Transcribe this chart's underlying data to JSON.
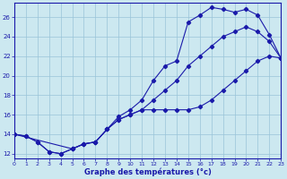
{
  "background_color": "#cce8f0",
  "grid_color": "#99c4d8",
  "line_color": "#1a1aaa",
  "xlabel": "Graphe des températures (°c)",
  "xlim": [
    0,
    23
  ],
  "ylim": [
    11.5,
    27.5
  ],
  "xticks": [
    0,
    1,
    2,
    3,
    4,
    5,
    6,
    7,
    8,
    9,
    10,
    11,
    12,
    13,
    14,
    15,
    16,
    17,
    18,
    19,
    20,
    21,
    22,
    23
  ],
  "yticks": [
    12,
    14,
    16,
    18,
    20,
    22,
    24,
    26
  ],
  "series": [
    {
      "x": [
        0,
        1,
        2,
        3,
        4,
        5,
        6,
        7,
        8,
        9,
        10,
        11,
        12,
        13,
        14,
        15,
        16,
        17,
        18,
        19,
        20,
        21,
        22,
        23
      ],
      "y": [
        14.0,
        13.8,
        13.2,
        12.2,
        12.0,
        12.5,
        13.0,
        13.2,
        14.5,
        15.5,
        16.0,
        16.5,
        17.5,
        18.5,
        19.5,
        21.0,
        22.0,
        23.0,
        24.0,
        24.5,
        25.0,
        24.5,
        23.5,
        21.8
      ]
    },
    {
      "x": [
        0,
        1,
        2,
        3,
        4,
        5,
        6,
        7,
        8,
        9,
        10,
        11,
        12,
        13,
        14,
        15,
        16,
        17,
        18,
        19,
        20,
        21,
        22,
        23
      ],
      "y": [
        14.0,
        13.8,
        13.2,
        12.2,
        12.0,
        12.5,
        13.0,
        13.2,
        14.5,
        15.8,
        16.5,
        17.5,
        19.5,
        21.0,
        21.5,
        25.5,
        26.2,
        27.0,
        26.8,
        26.5,
        26.8,
        26.2,
        24.2,
        21.8
      ]
    },
    {
      "x": [
        0,
        5,
        6,
        7,
        8,
        9,
        10,
        11,
        12,
        13,
        14,
        15,
        16,
        17,
        18,
        19,
        20,
        21,
        22,
        23
      ],
      "y": [
        14.0,
        12.5,
        13.0,
        13.2,
        14.5,
        15.5,
        16.0,
        16.5,
        16.5,
        16.5,
        16.5,
        16.5,
        16.8,
        17.5,
        18.5,
        19.5,
        20.5,
        21.5,
        22.0,
        21.8
      ]
    }
  ]
}
